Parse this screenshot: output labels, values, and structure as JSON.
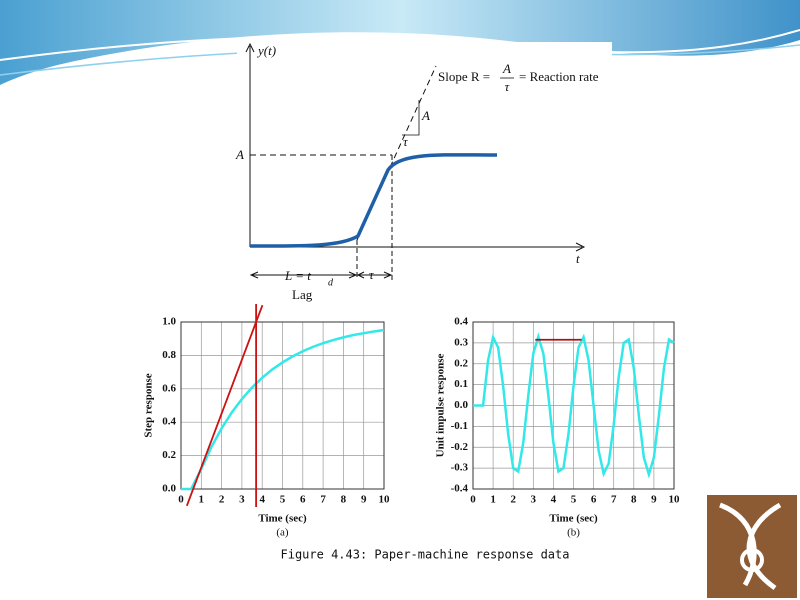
{
  "diagram": {
    "y_label": "y(t)",
    "t_label": "t",
    "a_label": "A",
    "slope_text": "Slope R =",
    "slope_num": "A",
    "slope_den": "τ",
    "slope_rest": "= Reaction rate",
    "triangle_a": "A",
    "triangle_tau": "τ",
    "lag_eq": "L = t",
    "lag_sub": "d",
    "tau": "τ",
    "lag": "Lag"
  },
  "caption": "Figure 4.43: Paper-machine response data",
  "chart_data": [
    {
      "type": "line",
      "ylabel": "Step response",
      "xlabel": "Time (sec)",
      "panel": "(a)",
      "x": [
        0,
        0.5,
        1,
        1.5,
        2,
        2.5,
        3,
        3.5,
        4,
        4.5,
        5,
        5.5,
        6,
        6.5,
        7,
        7.5,
        8,
        8.5,
        9,
        9.5,
        10
      ],
      "series": [
        {
          "color": "#33e8e8",
          "values": [
            0,
            0,
            0.121,
            0.252,
            0.363,
            0.458,
            0.539,
            0.608,
            0.666,
            0.716,
            0.758,
            0.794,
            0.825,
            0.851,
            0.873,
            0.892,
            0.908,
            0.922,
            0.933,
            0.943,
            0.952
          ]
        }
      ],
      "reference_lines": [
        {
          "color": "#cc1111",
          "x": [
            0.6,
            3.7
          ],
          "y": [
            0,
            1
          ]
        },
        {
          "color": "#cc1111",
          "x": [
            3.7,
            3.7
          ],
          "y": [
            0,
            1
          ]
        }
      ],
      "xlim": [
        0,
        10
      ],
      "xticks": [
        0,
        1,
        2,
        3,
        4,
        5,
        6,
        7,
        8,
        9,
        10
      ],
      "ylim": [
        0,
        1
      ],
      "yticks": [
        {
          "value": 0,
          "label": "0.0"
        },
        0.2,
        0.4,
        0.6,
        0.8,
        {
          "value": 1,
          "label": "1.0"
        }
      ],
      "grid": true
    },
    {
      "type": "line",
      "ylabel": "Unit impulse response",
      "xlabel": "Time (sec)",
      "panel": "(b)",
      "x": [
        0,
        0.25,
        0.5,
        0.75,
        1,
        1.25,
        1.5,
        1.75,
        2,
        2.25,
        2.5,
        2.75,
        3,
        3.25,
        3.5,
        3.75,
        4,
        4.25,
        4.5,
        4.75,
        5,
        5.25,
        5.5,
        5.75,
        6,
        6.25,
        6.5,
        6.75,
        7,
        7.25,
        7.5,
        7.75,
        8,
        8.25,
        8.5,
        8.75,
        9,
        9.25,
        9.5,
        9.75,
        10
      ],
      "series": [
        {
          "color": "#33e8e8",
          "values": [
            0,
            0,
            0,
            0.216,
            0.327,
            0.278,
            0.093,
            -0.137,
            -0.3,
            -0.316,
            -0.179,
            0.047,
            0.249,
            0.33,
            0.249,
            0.047,
            -0.179,
            -0.316,
            -0.3,
            -0.137,
            0.093,
            0.278,
            0.327,
            0.216,
            0,
            -0.216,
            -0.327,
            -0.278,
            -0.093,
            0.137,
            0.3,
            0.316,
            0.179,
            -0.047,
            -0.249,
            -0.33,
            -0.249,
            -0.047,
            0.179,
            0.316,
            0.3
          ]
        }
      ],
      "reference_lines": [
        {
          "color": "#aa1111",
          "x": [
            3.1,
            5.4
          ],
          "y": [
            0.315,
            0.315
          ]
        }
      ],
      "xlim": [
        0,
        10
      ],
      "xticks": [
        0,
        1,
        2,
        3,
        4,
        5,
        6,
        7,
        8,
        9,
        10
      ],
      "ylim": [
        -0.4,
        0.4
      ],
      "yticks": [
        -0.4,
        -0.3,
        -0.2,
        -0.1,
        {
          "value": 0,
          "label": "0.0"
        },
        0.1,
        0.2,
        0.3,
        0.4
      ],
      "grid": true
    }
  ]
}
